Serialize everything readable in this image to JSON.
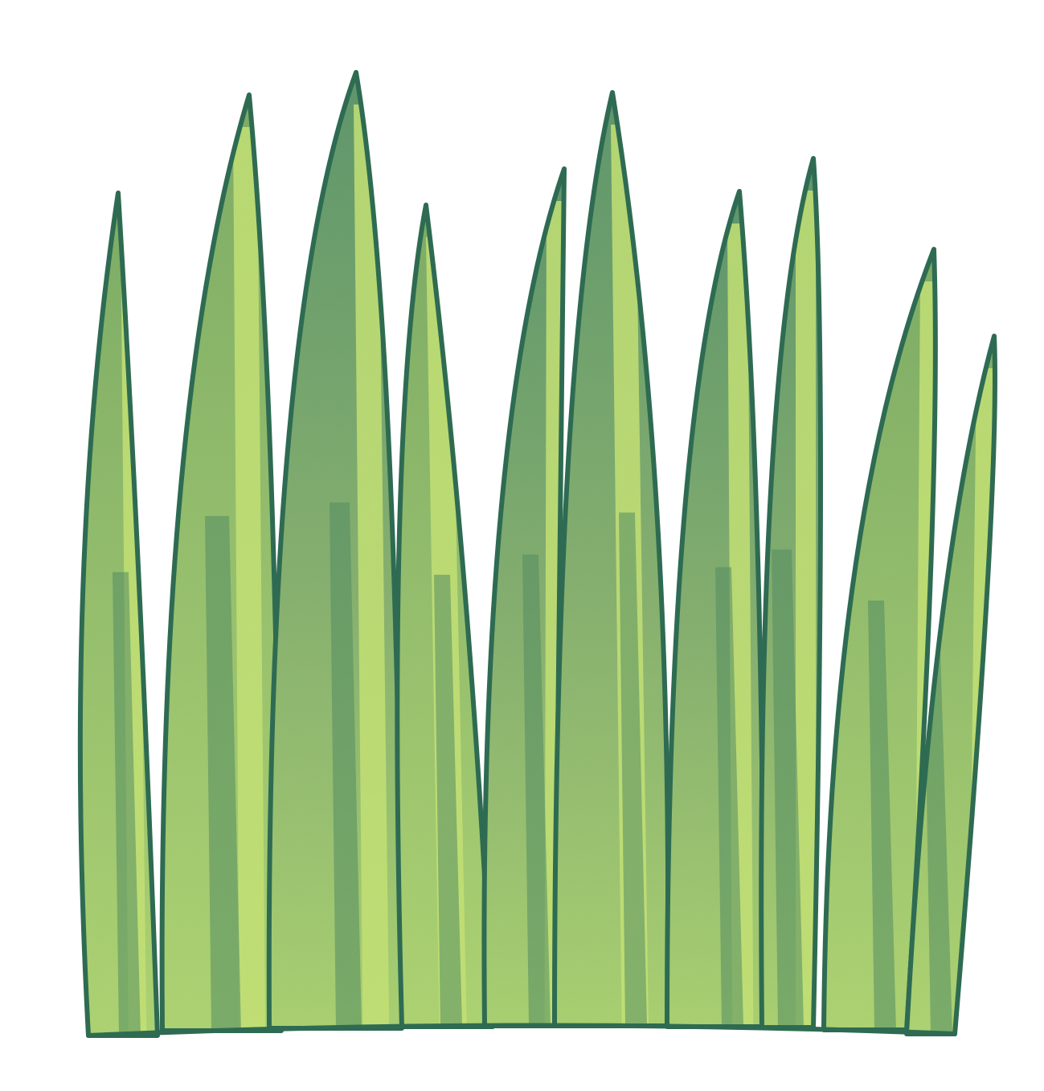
{
  "illustration": {
    "subject": "grass-clump",
    "blade_count": 10,
    "colors": {
      "outline": "#2e6b52",
      "fill_top": "#5a9468",
      "fill_bottom": "#a8d06e",
      "highlight": "#c3e272",
      "streak": "#4f8a5e",
      "background": "#ffffff"
    }
  }
}
